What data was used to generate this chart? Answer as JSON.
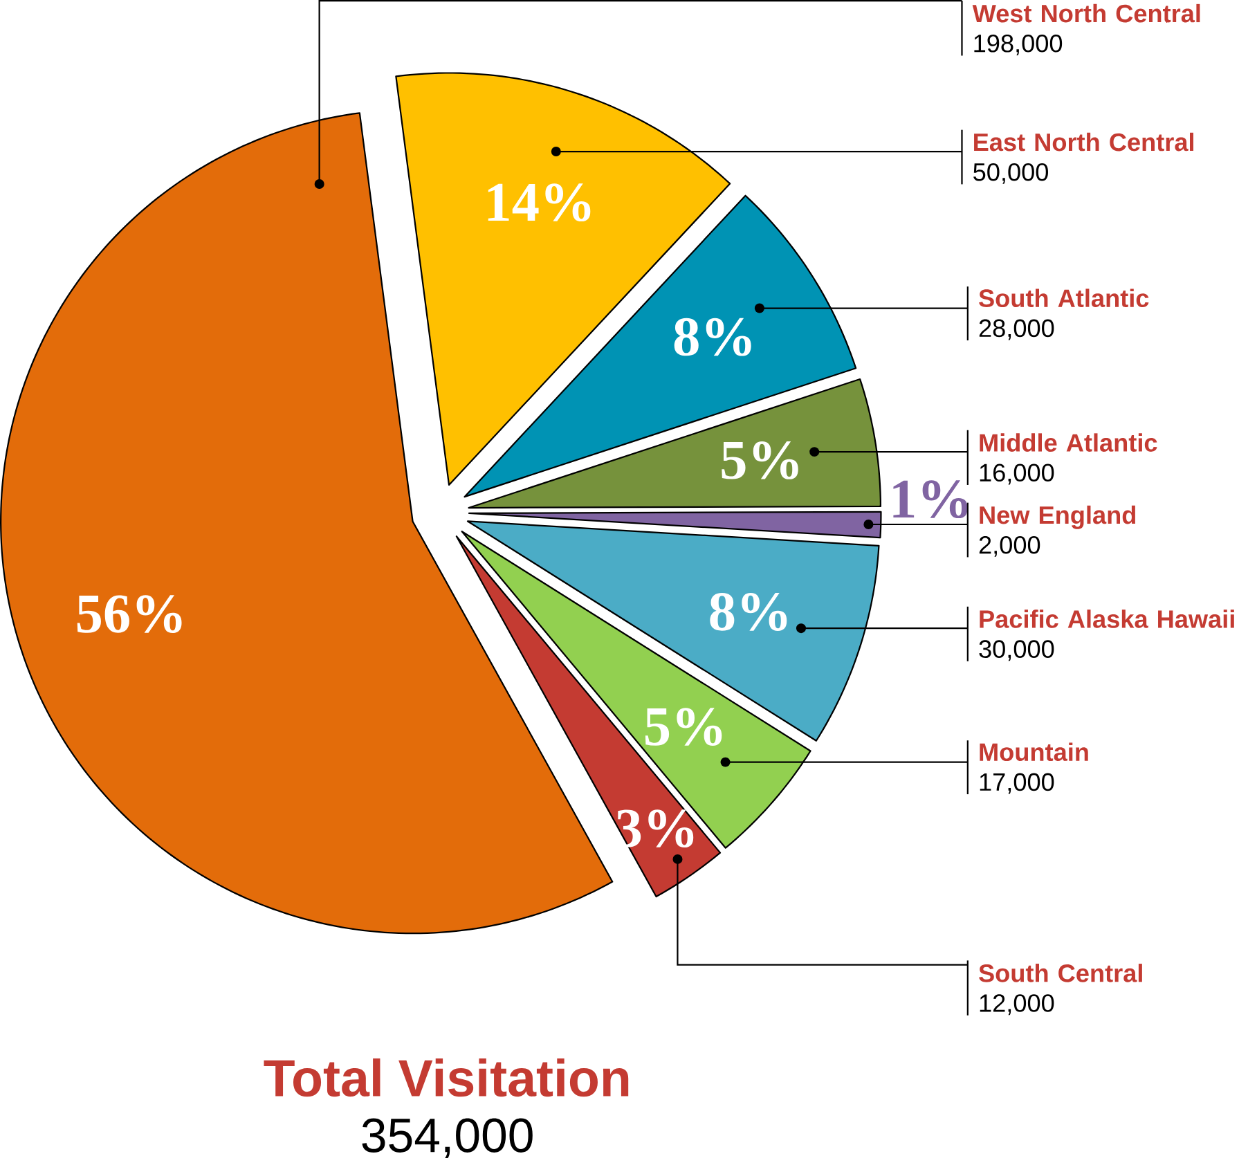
{
  "chart_data": {
    "type": "pie",
    "title": "Total Visitation",
    "subtitle": "354,000",
    "categories": [
      "West North Central",
      "East North Central",
      "South Atlantic",
      "Middle Atlantic",
      "New England",
      "Pacific Alaska Hawaii",
      "Mountain",
      "South Central"
    ],
    "values": [
      56,
      14,
      8,
      5,
      1,
      8,
      5,
      3
    ],
    "value_labels": [
      "56%",
      "14%",
      "8%",
      "5%",
      "1%",
      "8%",
      "5%",
      "3%"
    ],
    "annotations": [
      "198,000",
      "50,000",
      "28,000",
      "16,000",
      "2,000",
      "30,000",
      "17,000",
      "12,000"
    ],
    "colors": [
      "#e36c0a",
      "#ffc000",
      "#0093b4",
      "#76923c",
      "#8064a2",
      "#4bacc6",
      "#92d050",
      "#c43b32"
    ],
    "legend": "right"
  }
}
